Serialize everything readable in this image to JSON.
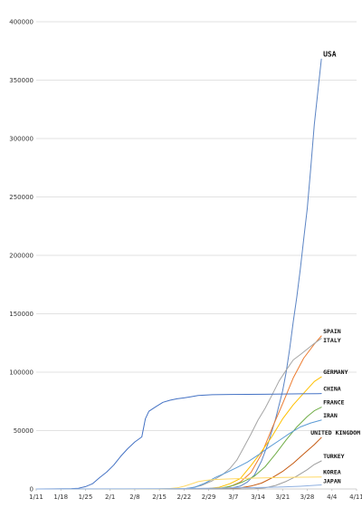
{
  "chart_data": {
    "type": "line",
    "title": "",
    "xlabel": "",
    "ylabel": "",
    "ylim": [
      0,
      400000
    ],
    "y_ticks": [
      0,
      50000,
      100000,
      150000,
      200000,
      250000,
      300000,
      350000,
      400000
    ],
    "x_tick_labels": [
      "1/11",
      "1/18",
      "1/25",
      "2/1",
      "2/8",
      "2/15",
      "2/22",
      "2/29",
      "3/7",
      "3/14",
      "3/21",
      "3/28",
      "4/4",
      "4/11"
    ],
    "x_days_range": [
      0,
      91
    ],
    "grid": "horizontal",
    "legend": "none",
    "series": [
      {
        "name": "USA",
        "color": "#5b84c4",
        "points": [
          [
            0,
            0
          ],
          [
            35,
            0
          ],
          [
            40,
            10
          ],
          [
            45,
            40
          ],
          [
            50,
            200
          ],
          [
            53,
            500
          ],
          [
            56,
            1200
          ],
          [
            58,
            2500
          ],
          [
            60,
            6000
          ],
          [
            62,
            12000
          ],
          [
            64,
            24000
          ],
          [
            66,
            40000
          ],
          [
            68,
            60000
          ],
          [
            70,
            84000
          ],
          [
            71,
            100000
          ],
          [
            72,
            120000
          ],
          [
            73,
            143000
          ],
          [
            74,
            164000
          ],
          [
            75,
            188000
          ],
          [
            76,
            214000
          ],
          [
            77,
            240000
          ],
          [
            78,
            275000
          ],
          [
            79,
            312000
          ],
          [
            80,
            340000
          ],
          [
            81,
            368000
          ]
        ]
      },
      {
        "name": "SPAIN",
        "color": "#ed7d31",
        "points": [
          [
            0,
            0
          ],
          [
            45,
            0
          ],
          [
            48,
            100
          ],
          [
            52,
            500
          ],
          [
            55,
            2000
          ],
          [
            58,
            6000
          ],
          [
            61,
            14000
          ],
          [
            64,
            30000
          ],
          [
            67,
            52000
          ],
          [
            70,
            73000
          ],
          [
            73,
            95000
          ],
          [
            76,
            112000
          ],
          [
            79,
            124000
          ],
          [
            81,
            131000
          ]
        ]
      },
      {
        "name": "ITALY",
        "color": "#a5a5a5",
        "points": [
          [
            0,
            0
          ],
          [
            40,
            0
          ],
          [
            42,
            150
          ],
          [
            44,
            1000
          ],
          [
            47,
            3000
          ],
          [
            50,
            7000
          ],
          [
            53,
            12500
          ],
          [
            55,
            17500
          ],
          [
            57,
            24700
          ],
          [
            59,
            35700
          ],
          [
            61,
            47000
          ],
          [
            63,
            59000
          ],
          [
            65,
            69000
          ],
          [
            67,
            80500
          ],
          [
            69,
            92500
          ],
          [
            71,
            101700
          ],
          [
            73,
            110500
          ],
          [
            75,
            115000
          ],
          [
            77,
            119800
          ],
          [
            79,
            124600
          ],
          [
            81,
            128900
          ]
        ]
      },
      {
        "name": "GERMANY",
        "color": "#ffc000",
        "points": [
          [
            0,
            0
          ],
          [
            46,
            0
          ],
          [
            49,
            500
          ],
          [
            52,
            1500
          ],
          [
            55,
            4500
          ],
          [
            58,
            9000
          ],
          [
            61,
            20000
          ],
          [
            64,
            32000
          ],
          [
            67,
            45000
          ],
          [
            70,
            60000
          ],
          [
            73,
            72000
          ],
          [
            76,
            82000
          ],
          [
            79,
            92000
          ],
          [
            81,
            96000
          ]
        ]
      },
      {
        "name": "CHINA",
        "color": "#4472c4",
        "points": [
          [
            0,
            0
          ],
          [
            5,
            100
          ],
          [
            10,
            300
          ],
          [
            12,
            600
          ],
          [
            14,
            2000
          ],
          [
            16,
            4500
          ],
          [
            18,
            9700
          ],
          [
            20,
            14400
          ],
          [
            22,
            20400
          ],
          [
            24,
            28000
          ],
          [
            26,
            34500
          ],
          [
            28,
            40200
          ],
          [
            30,
            44600
          ],
          [
            31,
            60000
          ],
          [
            32,
            66500
          ],
          [
            34,
            70500
          ],
          [
            36,
            74200
          ],
          [
            38,
            76000
          ],
          [
            40,
            77200
          ],
          [
            42,
            78000
          ],
          [
            44,
            79000
          ],
          [
            46,
            80000
          ],
          [
            50,
            80700
          ],
          [
            55,
            80900
          ],
          [
            60,
            81000
          ],
          [
            65,
            81100
          ],
          [
            70,
            81300
          ],
          [
            75,
            81500
          ],
          [
            80,
            81650
          ],
          [
            81,
            81700
          ]
        ]
      },
      {
        "name": "FRANCE",
        "color": "#70ad47",
        "points": [
          [
            0,
            0
          ],
          [
            50,
            0
          ],
          [
            53,
            1000
          ],
          [
            56,
            3000
          ],
          [
            59,
            6500
          ],
          [
            62,
            11000
          ],
          [
            65,
            19000
          ],
          [
            68,
            30000
          ],
          [
            71,
            42000
          ],
          [
            74,
            53000
          ],
          [
            77,
            62000
          ],
          [
            79,
            67000
          ],
          [
            81,
            70000
          ]
        ]
      },
      {
        "name": "IRAN",
        "color": "#5b9bd5",
        "points": [
          [
            0,
            0
          ],
          [
            38,
            0
          ],
          [
            40,
            40
          ],
          [
            42,
            250
          ],
          [
            45,
            1500
          ],
          [
            48,
            5000
          ],
          [
            51,
            10000
          ],
          [
            54,
            14000
          ],
          [
            57,
            18400
          ],
          [
            60,
            23000
          ],
          [
            63,
            29000
          ],
          [
            66,
            35400
          ],
          [
            69,
            41500
          ],
          [
            72,
            47600
          ],
          [
            75,
            53100
          ],
          [
            78,
            56500
          ],
          [
            81,
            59000
          ]
        ]
      },
      {
        "name": "UNITED KINGDOM",
        "color": "#c55a11",
        "points": [
          [
            0,
            0
          ],
          [
            52,
            0
          ],
          [
            55,
            300
          ],
          [
            58,
            1000
          ],
          [
            61,
            2500
          ],
          [
            64,
            5000
          ],
          [
            67,
            9500
          ],
          [
            70,
            15000
          ],
          [
            73,
            22000
          ],
          [
            76,
            30000
          ],
          [
            79,
            38000
          ],
          [
            81,
            44000
          ]
        ]
      },
      {
        "name": "TURKEY",
        "color": "#9e9e9e",
        "points": [
          [
            0,
            0
          ],
          [
            59,
            0
          ],
          [
            62,
            200
          ],
          [
            65,
            1000
          ],
          [
            68,
            3000
          ],
          [
            71,
            6500
          ],
          [
            74,
            11000
          ],
          [
            77,
            16500
          ],
          [
            79,
            21000
          ],
          [
            81,
            24000
          ]
        ]
      },
      {
        "name": "KOREA",
        "color": "#ffd966",
        "points": [
          [
            0,
            0
          ],
          [
            30,
            30
          ],
          [
            35,
            100
          ],
          [
            38,
            350
          ],
          [
            40,
            900
          ],
          [
            42,
            2300
          ],
          [
            44,
            4300
          ],
          [
            46,
            6300
          ],
          [
            48,
            7300
          ],
          [
            50,
            7900
          ],
          [
            52,
            8200
          ],
          [
            55,
            8600
          ],
          [
            58,
            8900
          ],
          [
            62,
            9300
          ],
          [
            66,
            9600
          ],
          [
            70,
            9900
          ],
          [
            75,
            10100
          ],
          [
            81,
            10300
          ]
        ]
      },
      {
        "name": "JAPAN",
        "color": "#8fb0e0",
        "points": [
          [
            0,
            0
          ],
          [
            25,
            50
          ],
          [
            35,
            150
          ],
          [
            40,
            300
          ],
          [
            45,
            500
          ],
          [
            50,
            700
          ],
          [
            55,
            900
          ],
          [
            60,
            1100
          ],
          [
            65,
            1300
          ],
          [
            70,
            1700
          ],
          [
            75,
            2300
          ],
          [
            78,
            2900
          ],
          [
            81,
            3500
          ]
        ]
      }
    ]
  }
}
